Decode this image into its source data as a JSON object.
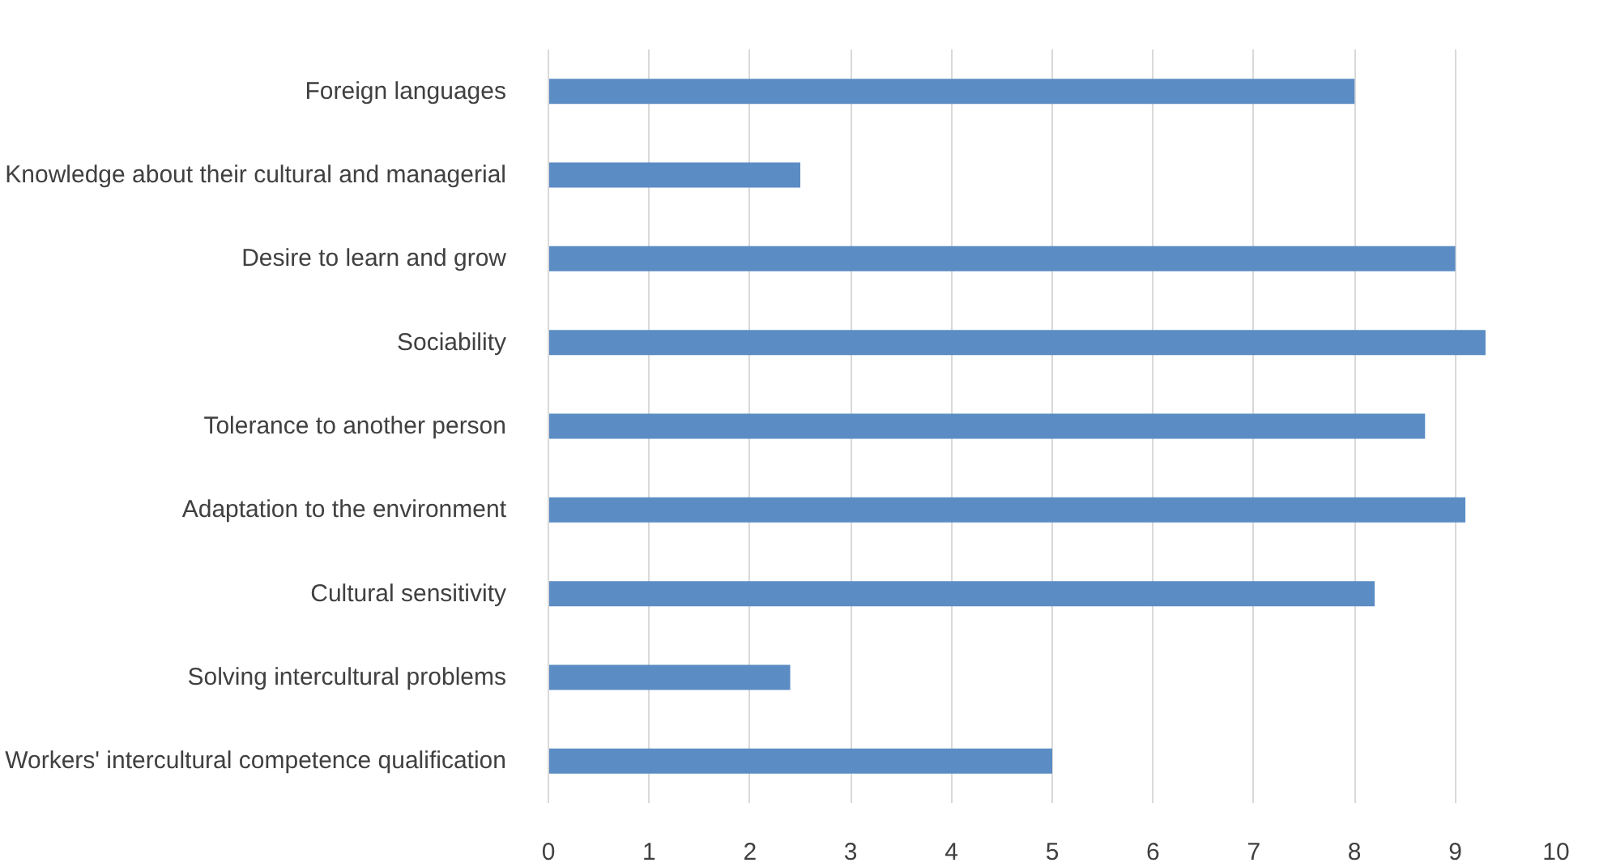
{
  "chart_data": {
    "type": "bar",
    "orientation": "horizontal",
    "categories": [
      "Foreign languages",
      "Knowledge about their cultural and managerial",
      "Desire to learn and grow",
      "Sociability",
      "Tolerance to another person",
      "Adaptation to the environment",
      "Cultural sensitivity",
      "Solving intercultural problems",
      "Workers' intercultural competence qualification"
    ],
    "values": [
      8.0,
      2.5,
      9.0,
      9.3,
      8.7,
      9.1,
      8.2,
      2.4,
      5.0
    ],
    "color": "#5b8cc4",
    "xlim": [
      0,
      10
    ],
    "xticks": [
      0,
      1,
      2,
      3,
      4,
      5,
      6,
      7,
      8,
      9,
      10
    ],
    "grid": "x"
  }
}
